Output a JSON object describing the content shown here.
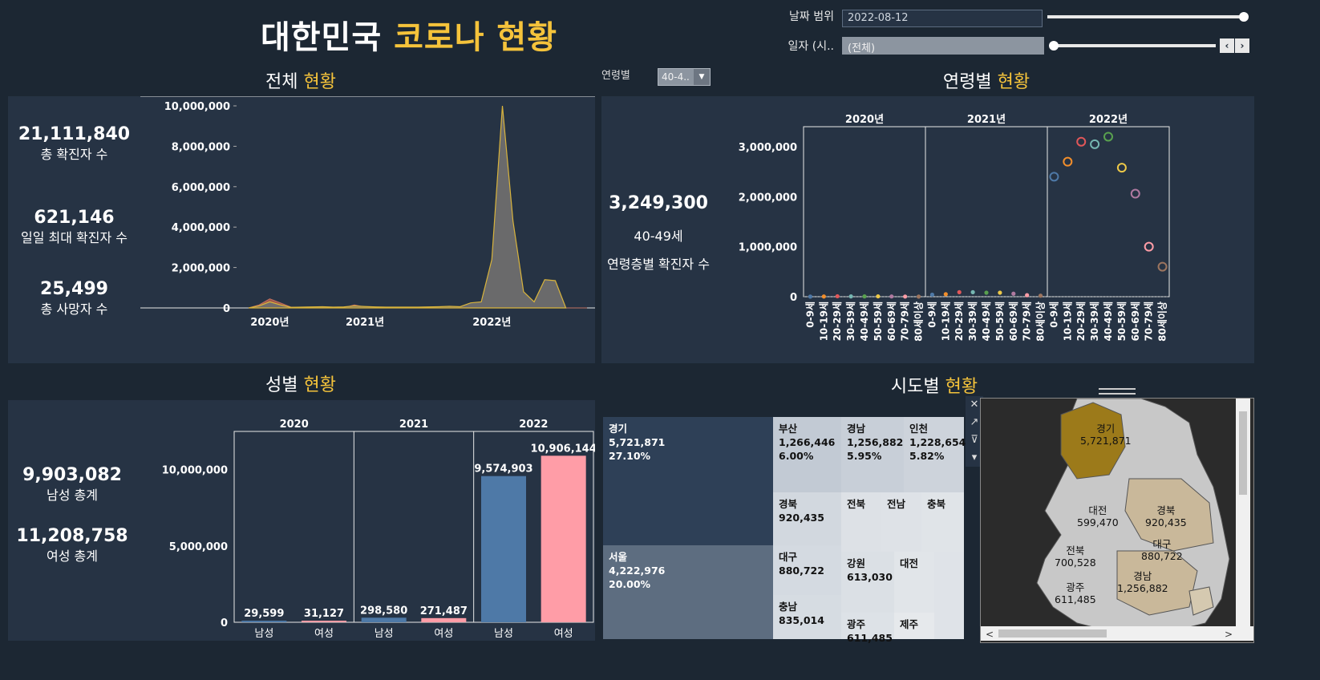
{
  "header": {
    "title_a": "대한민국 ",
    "title_b": "코로나 현황"
  },
  "filters": {
    "date_range_label": "날짜 범위",
    "date_range_value": "2022-08-12",
    "date_label": "일자 (시..",
    "date_value": "(전체)",
    "age_label": "연령별",
    "age_value": "40-4..",
    "dropdown_icon": "chevron-down-icon",
    "prev_icon": "chevron-left-icon",
    "next_icon": "chevron-right-icon"
  },
  "sections": {
    "total_a": "전체 ",
    "total_b": "현황",
    "age_a": "연령별 ",
    "age_b": "현황",
    "gender_a": "성별 ",
    "gender_b": "현황",
    "region_a": "시도별 ",
    "region_b": "현황"
  },
  "kpis": {
    "total_confirmed": "21,111,840",
    "total_confirmed_label": "총 확진자 수",
    "max_daily": "621,146",
    "max_daily_label": "일일 최대 확진자 수",
    "total_deaths": "25,499",
    "total_deaths_label": "총 사망자 수",
    "age_value": "3,249,300",
    "age_group": "40-49세",
    "age_label": "연령층별 확진자 수",
    "male_total": "9,903,082",
    "male_label": "남성 총계",
    "female_total": "11,208,758",
    "female_label": "여성 총계"
  },
  "colors": {
    "accent": "#f5c33b",
    "background": "#1c2733",
    "panel": "#263344",
    "male": "#4e79a7",
    "female": "#ff9da7",
    "area_fill": "#6e6e6e",
    "area_line": "#d9b43c"
  },
  "chart_data": [
    {
      "type": "area",
      "x_ticks": [
        "2020년",
        "2021년",
        "2022년"
      ],
      "y_ticks": [
        "0",
        "2,000,000",
        "4,000,000",
        "6,000,000",
        "8,000,000",
        "10,000,000"
      ],
      "ylim": [
        0,
        10000000
      ],
      "x_months": [
        0,
        1,
        2,
        3,
        4,
        5,
        6,
        7,
        8,
        9,
        10,
        11,
        12,
        13,
        14,
        15,
        16,
        17,
        18,
        19,
        20,
        21,
        22,
        23,
        24,
        25,
        26,
        27,
        28,
        29,
        30,
        31,
        32
      ],
      "values": [
        0,
        100000,
        300000,
        150000,
        30000,
        40000,
        50000,
        60000,
        40000,
        50000,
        100000,
        70000,
        50000,
        40000,
        40000,
        40000,
        40000,
        50000,
        60000,
        80000,
        60000,
        250000,
        300000,
        2400000,
        10000000,
        4300000,
        800000,
        300000,
        1400000,
        1350000,
        0,
        0,
        0
      ],
      "secondary_values": [
        0,
        150000,
        450000,
        250000,
        40000,
        10000,
        30000,
        10000,
        20000,
        10000,
        150000,
        40000,
        10000,
        10000,
        10000,
        10000,
        10000,
        10000,
        10000,
        10000,
        10000,
        10000,
        10000,
        10000,
        10000,
        10000,
        10000,
        10000,
        10000,
        10000,
        0,
        0,
        0
      ]
    },
    {
      "type": "scatter",
      "facets": [
        "2020년",
        "2021년",
        "2022년"
      ],
      "categories": [
        "0-9세",
        "10-19세",
        "20-29세",
        "30-39세",
        "40-49세",
        "50-59세",
        "60-69세",
        "70-79세",
        "80세이상"
      ],
      "point_colors": [
        "#4e79a7",
        "#f28e2b",
        "#e15759",
        "#76b7b2",
        "#59a14f",
        "#edc948",
        "#b07aa1",
        "#ff9da7",
        "#9c755f"
      ],
      "y_ticks": [
        "0",
        "1,000,000",
        "2,000,000",
        "3,000,000"
      ],
      "ylim": [
        0,
        3400000
      ],
      "series": [
        {
          "name": "2020년",
          "values": [
            2000,
            4000,
            9000,
            6000,
            6000,
            7000,
            5000,
            3000,
            2000
          ]
        },
        {
          "name": "2021년",
          "values": [
            40000,
            50000,
            90000,
            90000,
            80000,
            80000,
            60000,
            30000,
            20000
          ]
        },
        {
          "name": "2022년",
          "values": [
            2400000,
            2700000,
            3100000,
            3050000,
            3200000,
            2580000,
            2060000,
            1000000,
            600000
          ]
        }
      ]
    },
    {
      "type": "bar",
      "facets": [
        "2020",
        "2021",
        "2022"
      ],
      "categories": [
        "남성",
        "여성"
      ],
      "y_ticks": [
        "0",
        "5,000,000",
        "10,000,000"
      ],
      "ylim": [
        0,
        12500000
      ],
      "series": [
        {
          "name": "2020",
          "values": [
            29599,
            31127
          ],
          "labels": [
            "29,599",
            "31,127"
          ]
        },
        {
          "name": "2021",
          "values": [
            298580,
            271487
          ],
          "labels": [
            "298,580",
            "271,487"
          ]
        },
        {
          "name": "2022",
          "values": [
            9574903,
            10906144
          ],
          "labels": [
            "9,574,903",
            "10,906,144"
          ]
        }
      ]
    },
    {
      "type": "treemap",
      "cells": [
        {
          "name": "경기",
          "value": "5,721,871",
          "pct": "27.10%"
        },
        {
          "name": "서울",
          "value": "4,222,976",
          "pct": "20.00%"
        },
        {
          "name": "부산",
          "value": "1,266,446",
          "pct": "6.00%"
        },
        {
          "name": "경남",
          "value": "1,256,882",
          "pct": "5.95%"
        },
        {
          "name": "인천",
          "value": "1,228,654",
          "pct": "5.82%"
        },
        {
          "name": "경북",
          "value": "920,435"
        },
        {
          "name": "전북"
        },
        {
          "name": "전남"
        },
        {
          "name": "충북"
        },
        {
          "name": "대구",
          "value": "880,722"
        },
        {
          "name": "강원",
          "value": "613,030"
        },
        {
          "name": "대전"
        },
        {
          "name": "충남",
          "value": "835,014"
        },
        {
          "name": "광주",
          "value": "611,485"
        },
        {
          "name": "제주"
        }
      ]
    }
  ],
  "map": {
    "labels": [
      {
        "name": "경기",
        "value": "5,721,871"
      },
      {
        "name": "대전",
        "value": "599,470"
      },
      {
        "name": "경북",
        "value": "920,435"
      },
      {
        "name": "대구",
        "value": "880,722"
      },
      {
        "name": "전북",
        "value": "700,528"
      },
      {
        "name": "경남",
        "value": "1,256,882"
      },
      {
        "name": "광주",
        "value": "611,485"
      }
    ]
  }
}
